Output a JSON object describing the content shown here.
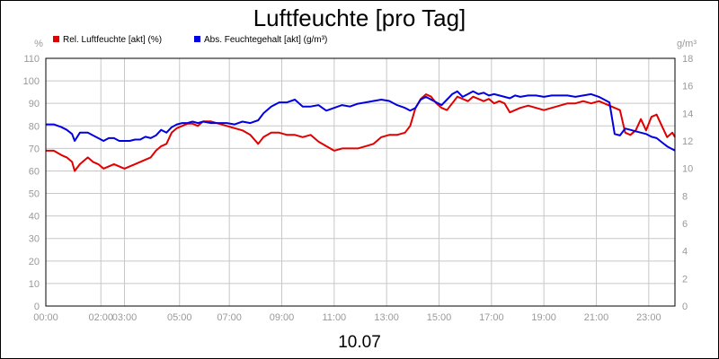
{
  "chart_data": {
    "type": "line",
    "title": "Luftfeuchte [pro Tag]",
    "xlabel": "10.07",
    "left_unit": "%",
    "right_unit": "g/m³",
    "ylim_left": [
      0,
      110
    ],
    "ylim_right": [
      0,
      18
    ],
    "left_ticks": [
      0,
      10,
      20,
      30,
      40,
      50,
      60,
      70,
      80,
      90,
      100,
      110
    ],
    "right_ticks": [
      0,
      2,
      4,
      6,
      8,
      10,
      12,
      14,
      16,
      18
    ],
    "x_range_hours": [
      0,
      24
    ],
    "x_tick_labels": [
      "00:00",
      "02:00",
      "03:00",
      "05:00",
      "07:00",
      "09:00",
      "11:00",
      "13:00",
      "15:00",
      "17:00",
      "19:00",
      "21:00",
      "23:00"
    ],
    "x_tick_hours": [
      0,
      2.1,
      3.0,
      5.1,
      7.0,
      9.0,
      11.0,
      13.0,
      15.0,
      17.0,
      19.0,
      21.0,
      23.0
    ],
    "grid": true,
    "legend_position": "top-left",
    "series": [
      {
        "name": "Rel. Luftfeuchte [akt] (%)",
        "axis": "left",
        "color": "#e00000",
        "x": [
          0,
          0.3,
          0.6,
          0.8,
          1.0,
          1.1,
          1.3,
          1.6,
          1.8,
          2.0,
          2.2,
          2.4,
          2.6,
          2.8,
          3.0,
          3.2,
          3.4,
          3.6,
          3.8,
          4.0,
          4.2,
          4.4,
          4.6,
          4.8,
          5.0,
          5.2,
          5.4,
          5.6,
          5.8,
          6.0,
          6.3,
          6.6,
          6.9,
          7.2,
          7.5,
          7.8,
          8.1,
          8.3,
          8.6,
          8.9,
          9.2,
          9.5,
          9.8,
          10.1,
          10.4,
          10.7,
          11.0,
          11.3,
          11.6,
          11.9,
          12.2,
          12.5,
          12.8,
          13.1,
          13.4,
          13.7,
          13.9,
          14.1,
          14.3,
          14.5,
          14.7,
          14.9,
          15.1,
          15.3,
          15.5,
          15.7,
          15.9,
          16.1,
          16.3,
          16.5,
          16.7,
          16.9,
          17.1,
          17.3,
          17.5,
          17.7,
          17.9,
          18.1,
          18.4,
          18.7,
          19.0,
          19.3,
          19.6,
          19.9,
          20.2,
          20.5,
          20.8,
          21.1,
          21.3,
          21.5,
          21.7,
          21.9,
          22.1,
          22.3,
          22.5,
          22.7,
          22.9,
          23.1,
          23.3,
          23.5,
          23.7,
          23.9,
          24.0
        ],
        "y": [
          69,
          69,
          67,
          66,
          64,
          60,
          63,
          66,
          64,
          63,
          61,
          62,
          63,
          62,
          61,
          62,
          63,
          64,
          65,
          66,
          69,
          71,
          72,
          77,
          79,
          80,
          81,
          81,
          80,
          82,
          82,
          81,
          80,
          79,
          78,
          76,
          72,
          75,
          77,
          77,
          76,
          76,
          75,
          76,
          73,
          71,
          69,
          70,
          70,
          70,
          71,
          72,
          75,
          76,
          76,
          77,
          80,
          88,
          92,
          94,
          93,
          90,
          88,
          87,
          90,
          93,
          92,
          91,
          93,
          92,
          91,
          92,
          90,
          91,
          90,
          86,
          87,
          88,
          89,
          88,
          87,
          88,
          89,
          90,
          90,
          91,
          90,
          91,
          90,
          89,
          88,
          87,
          77,
          76,
          78,
          83,
          78,
          84,
          85,
          80,
          75,
          77,
          75
        ]
      },
      {
        "name": "Abs. Feuchtegehalt [akt] (g/m³)",
        "axis": "right",
        "color": "#0000e0",
        "x": [
          0,
          0.3,
          0.6,
          0.8,
          1.0,
          1.1,
          1.3,
          1.6,
          1.8,
          2.0,
          2.2,
          2.4,
          2.6,
          2.8,
          3.0,
          3.2,
          3.4,
          3.6,
          3.8,
          4.0,
          4.2,
          4.4,
          4.6,
          4.8,
          5.0,
          5.2,
          5.4,
          5.6,
          5.8,
          6.0,
          6.3,
          6.6,
          6.9,
          7.2,
          7.5,
          7.8,
          8.1,
          8.3,
          8.6,
          8.9,
          9.2,
          9.5,
          9.8,
          10.1,
          10.4,
          10.7,
          11.0,
          11.3,
          11.6,
          11.9,
          12.2,
          12.5,
          12.8,
          13.1,
          13.4,
          13.7,
          13.9,
          14.1,
          14.3,
          14.5,
          14.7,
          14.9,
          15.1,
          15.3,
          15.5,
          15.7,
          15.9,
          16.1,
          16.3,
          16.5,
          16.7,
          16.9,
          17.1,
          17.3,
          17.5,
          17.7,
          17.9,
          18.1,
          18.4,
          18.7,
          19.0,
          19.3,
          19.6,
          19.9,
          20.2,
          20.5,
          20.8,
          21.1,
          21.3,
          21.5,
          21.7,
          21.9,
          22.1,
          22.3,
          22.5,
          22.7,
          22.9,
          23.1,
          23.3,
          23.5,
          23.7,
          23.9,
          24.0
        ],
        "y": [
          13.2,
          13.2,
          13.0,
          12.8,
          12.5,
          12.0,
          12.6,
          12.6,
          12.4,
          12.2,
          12.0,
          12.2,
          12.2,
          12.0,
          12.0,
          12.0,
          12.1,
          12.1,
          12.3,
          12.2,
          12.4,
          12.8,
          12.6,
          13.0,
          13.2,
          13.3,
          13.3,
          13.4,
          13.3,
          13.4,
          13.3,
          13.3,
          13.3,
          13.2,
          13.4,
          13.3,
          13.5,
          14.0,
          14.5,
          14.8,
          14.8,
          15.0,
          14.5,
          14.5,
          14.6,
          14.2,
          14.4,
          14.6,
          14.5,
          14.7,
          14.8,
          14.9,
          15.0,
          14.9,
          14.6,
          14.4,
          14.2,
          14.4,
          15.0,
          15.2,
          15.0,
          14.8,
          14.6,
          15.0,
          15.4,
          15.6,
          15.2,
          15.4,
          15.6,
          15.4,
          15.5,
          15.3,
          15.4,
          15.3,
          15.2,
          15.1,
          15.3,
          15.2,
          15.3,
          15.3,
          15.2,
          15.3,
          15.3,
          15.3,
          15.2,
          15.3,
          15.4,
          15.2,
          15.0,
          14.8,
          12.5,
          12.4,
          12.9,
          12.8,
          12.7,
          12.6,
          12.5,
          12.3,
          12.2,
          11.9,
          11.6,
          11.4,
          11.3
        ]
      }
    ]
  }
}
